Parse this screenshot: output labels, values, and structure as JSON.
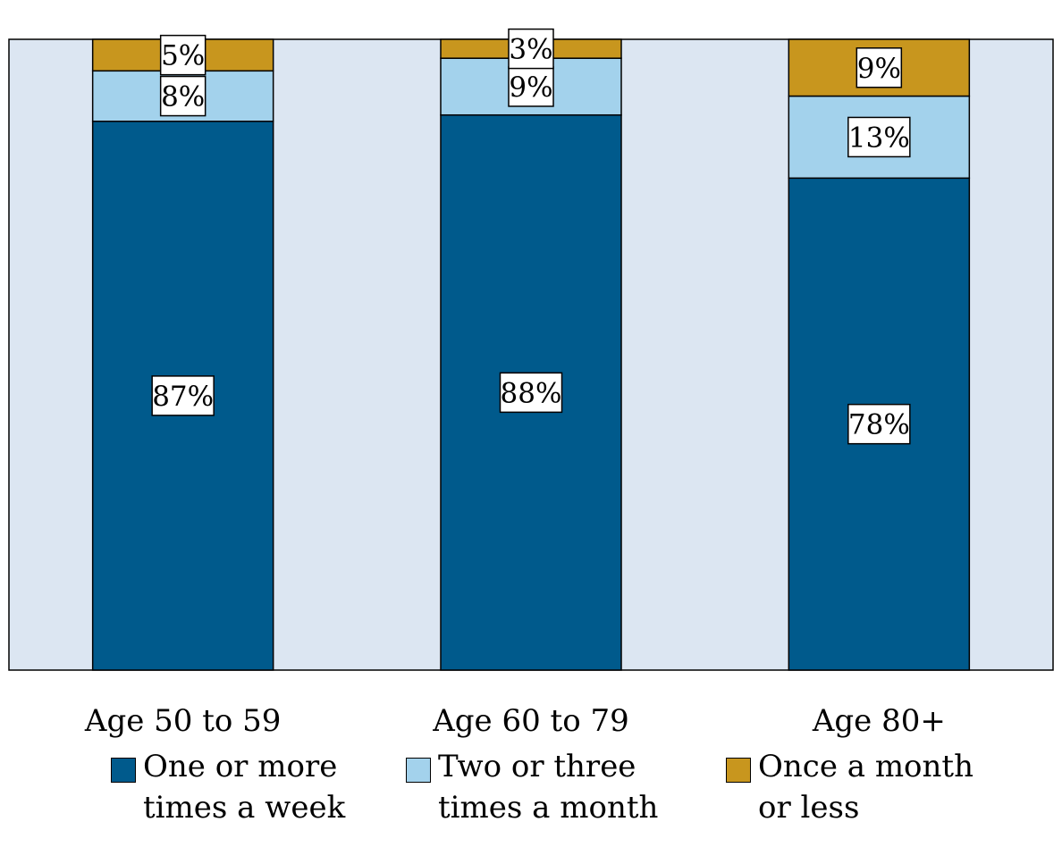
{
  "chart_data": {
    "type": "bar",
    "stacked": true,
    "categories": [
      "Age 50 to 59",
      "Age 60 to 79",
      "Age 80+"
    ],
    "series": [
      {
        "name": "One or more times a week",
        "values": [
          87,
          88,
          78
        ],
        "labels": [
          "87%",
          "88%",
          "78%"
        ],
        "color": "#005a8c"
      },
      {
        "name": "Two or three times a month",
        "values": [
          8,
          9,
          13
        ],
        "labels": [
          "8%",
          "9%",
          "13%"
        ],
        "color": "#a3d2ec"
      },
      {
        "name": "Once a month or less",
        "values": [
          5,
          3,
          9
        ],
        "labels": [
          "5%",
          "3%",
          "9%"
        ],
        "color": "#c8961e"
      }
    ],
    "ylim": [
      0,
      100
    ],
    "grid": false,
    "legend_position": "bottom",
    "plot_background": "#dce6f2",
    "title": "",
    "xlabel": "",
    "ylabel": ""
  },
  "legend": {
    "items": [
      {
        "line1": "One or more",
        "line2": "times a week",
        "color": "#005a8c"
      },
      {
        "line1": "Two or three",
        "line2": "times a month",
        "color": "#a3d2ec"
      },
      {
        "line1": "Once a month",
        "line2": "or less",
        "color": "#c8961e"
      }
    ]
  }
}
